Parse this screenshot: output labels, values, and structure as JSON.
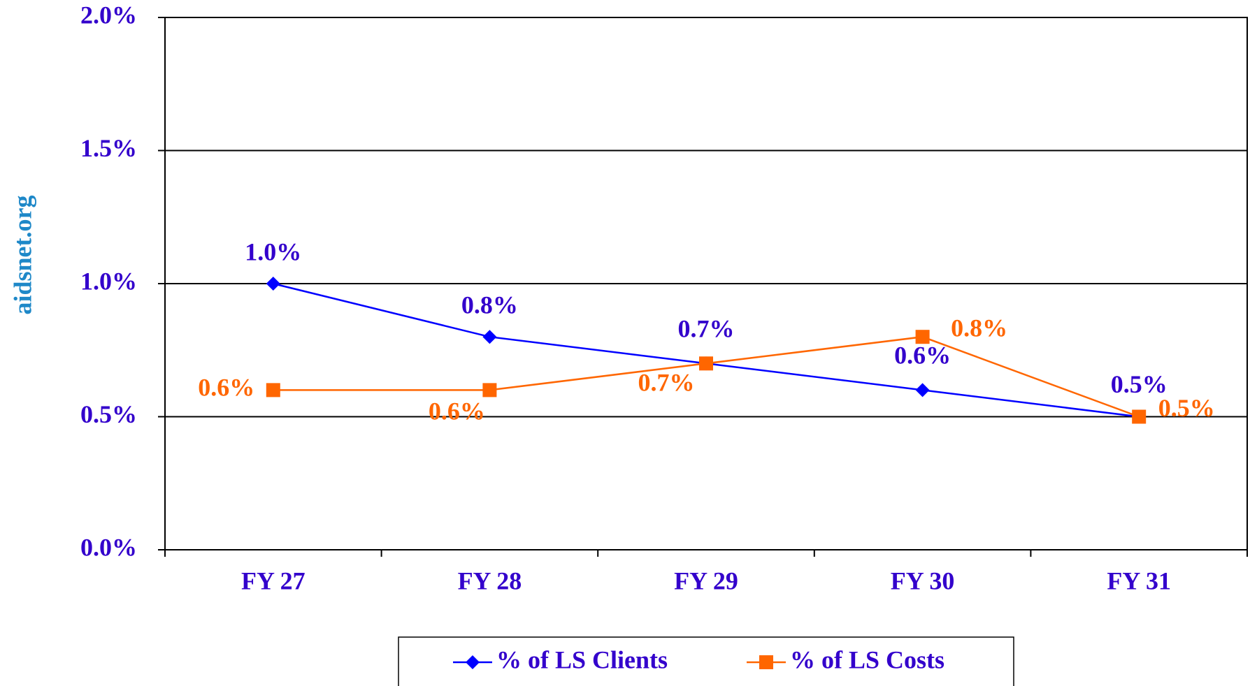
{
  "chart_data": {
    "type": "line",
    "y_label": "aidsnet.org",
    "categories": [
      "FY 27",
      "FY 28",
      "FY 29",
      "FY 30",
      "FY 31"
    ],
    "series": [
      {
        "name": "% of LS Clients",
        "color": "#0000ff",
        "label_color": "#3300cc",
        "marker": "diamond",
        "values": [
          1.0,
          0.8,
          0.7,
          0.6,
          0.5
        ],
        "value_labels": [
          "1.0%",
          "0.8%",
          "0.7%",
          "0.6%",
          "0.5%"
        ]
      },
      {
        "name": "% of LS Costs",
        "color": "#ff6600",
        "label_color": "#ff6600",
        "marker": "square",
        "values": [
          0.6,
          0.6,
          0.7,
          0.8,
          0.5
        ],
        "value_labels": [
          "0.6%",
          "0.6%",
          "0.7%",
          "0.8%",
          "0.5%"
        ]
      }
    ],
    "ylim": [
      0,
      2
    ],
    "yticks": [
      {
        "value": 0,
        "label": "0.0%"
      },
      {
        "value": 0.5,
        "label": "0.5%"
      },
      {
        "value": 1,
        "label": "1.0%"
      },
      {
        "value": 1.5,
        "label": "1.5%"
      },
      {
        "value": 2,
        "label": "2.0%"
      }
    ],
    "grid": true
  }
}
